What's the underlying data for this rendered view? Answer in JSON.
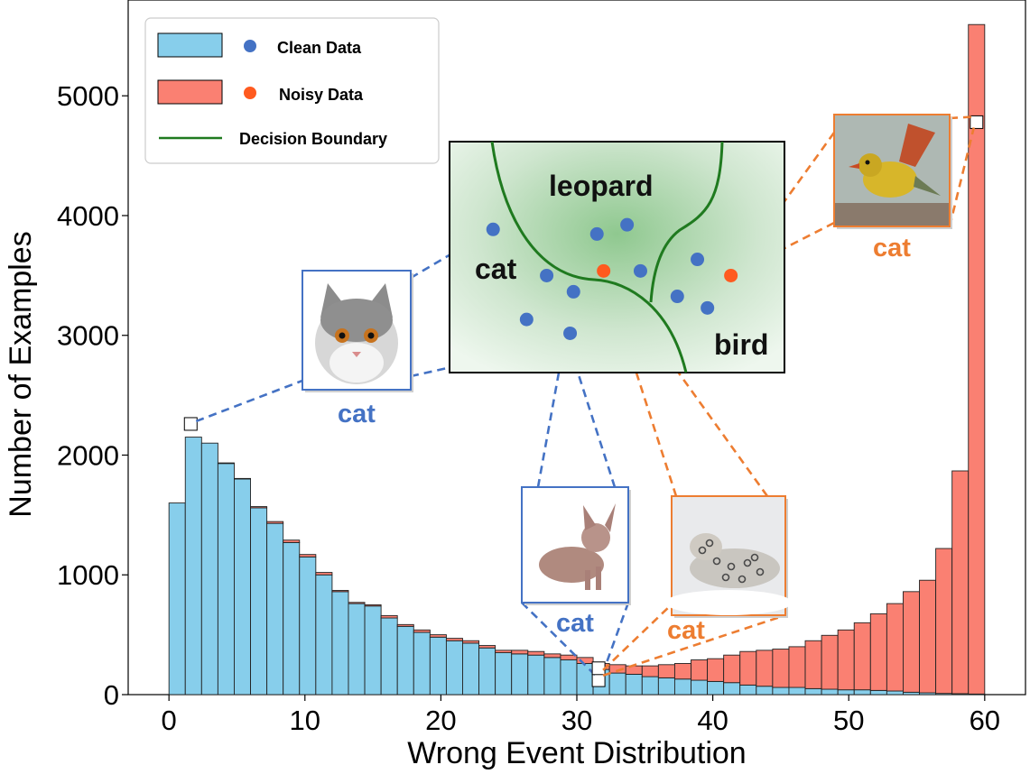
{
  "chart_data": {
    "type": "bar",
    "stacked": true,
    "title": "",
    "xlabel": "Wrong Event Distribution",
    "ylabel": "Number of Examples",
    "xlim": [
      -3,
      63
    ],
    "ylim": [
      0,
      5800
    ],
    "xticks": [
      0,
      10,
      20,
      30,
      40,
      50,
      60
    ],
    "yticks": [
      0,
      1000,
      2000,
      3000,
      4000,
      5000
    ],
    "bin_width": 1.2,
    "bin_starts": [
      0,
      1.2,
      2.4,
      3.6,
      4.8,
      6,
      7.2,
      8.4,
      9.6,
      10.8,
      12,
      13.2,
      14.4,
      15.6,
      16.8,
      18,
      19.2,
      20.4,
      21.6,
      22.8,
      24,
      25.2,
      26.4,
      27.6,
      28.8,
      30,
      31.2,
      32.4,
      33.6,
      34.8,
      36,
      37.2,
      38.4,
      39.6,
      40.8,
      42,
      43.2,
      44.4,
      45.6,
      46.8,
      48,
      49.2,
      50.4,
      51.6,
      52.8,
      54,
      55.2,
      56.4,
      57.6,
      58.8
    ],
    "series": [
      {
        "name": "Clean Data",
        "color": "#87ceeb",
        "values": [
          1600,
          2150,
          2100,
          1930,
          1800,
          1560,
          1430,
          1270,
          1150,
          1000,
          860,
          760,
          740,
          640,
          570,
          520,
          480,
          450,
          430,
          390,
          350,
          340,
          330,
          310,
          290,
          260,
          210,
          180,
          170,
          150,
          140,
          130,
          120,
          110,
          100,
          80,
          70,
          60,
          60,
          50,
          45,
          40,
          40,
          35,
          30,
          20,
          15,
          10,
          8,
          5
        ]
      },
      {
        "name": "Noisy Data",
        "color": "#fa8072",
        "values": [
          0,
          0,
          0,
          5,
          5,
          10,
          15,
          20,
          20,
          20,
          10,
          10,
          10,
          20,
          15,
          20,
          20,
          20,
          20,
          20,
          20,
          30,
          30,
          30,
          40,
          50,
          50,
          70,
          70,
          90,
          110,
          130,
          170,
          190,
          230,
          280,
          300,
          320,
          340,
          400,
          450,
          500,
          560,
          640,
          730,
          840,
          940,
          1210,
          1860,
          5590
        ]
      }
    ],
    "legend": {
      "position": "top-left",
      "entries": [
        "Clean Data",
        "Noisy Data",
        "Decision Boundary"
      ],
      "boundary_color": "#1f7a1f"
    },
    "inset": {
      "labels": [
        "leopard",
        "cat",
        "bird"
      ],
      "clean_points": [
        [
          0.13,
          0.62
        ],
        [
          0.44,
          0.6
        ],
        [
          0.53,
          0.64
        ],
        [
          0.29,
          0.42
        ],
        [
          0.37,
          0.35
        ],
        [
          0.57,
          0.44
        ],
        [
          0.74,
          0.49
        ],
        [
          0.68,
          0.33
        ],
        [
          0.77,
          0.28
        ],
        [
          0.23,
          0.23
        ],
        [
          0.36,
          0.17
        ]
      ],
      "noisy_points": [
        [
          0.46,
          0.44
        ],
        [
          0.84,
          0.42
        ]
      ],
      "clean_color": "#4472c4",
      "noisy_color": "#ff5a1f"
    },
    "annotations": [
      {
        "label": "cat",
        "kind": "clean",
        "subject": "cat-photo",
        "x": 1.6,
        "y": 2260
      },
      {
        "label": "cat",
        "kind": "clean",
        "subject": "sphynx-cat-photo",
        "x": 31.6,
        "y": 120
      },
      {
        "label": "cat",
        "kind": "noisy",
        "subject": "snow-leopard-photo",
        "x": 31.6,
        "y": 220
      },
      {
        "label": "cat",
        "kind": "noisy",
        "subject": "bird-photo",
        "x": 59.4,
        "y": 4780
      }
    ]
  }
}
